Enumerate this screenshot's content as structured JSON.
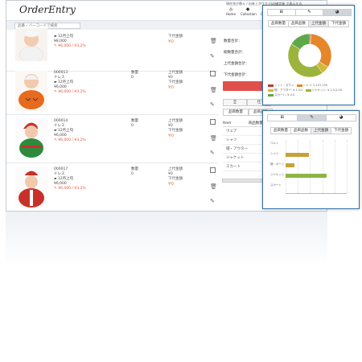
{
  "app": {
    "logo": "OrderEntry",
    "notice": "現在並び替え / 出来上がりで 日の確定後 で表示する",
    "nav": [
      {
        "icon": "home-icon",
        "glyph": "⌂",
        "label": "Home"
      },
      {
        "icon": "tag-icon",
        "glyph": "◆",
        "label": "Collection"
      },
      {
        "icon": "tag-icon",
        "glyph": "◆",
        "label": "Orde"
      }
    ],
    "search_placeholder": "品番・バーコードで検索"
  },
  "orders": [
    {
      "code": "",
      "name": "",
      "delivery": "12月上旬",
      "unit_price": "¥8,000",
      "price_line": "¥6,000 / ¥3,2%",
      "qty_label": "",
      "qty": "",
      "amt_label": "下代金額",
      "amt": "¥0",
      "image": "baby-white"
    },
    {
      "code": "000013",
      "name": "ドレス",
      "delivery": "12月上旬",
      "unit_price": "¥6,000",
      "price_line": "¥6,000 / ¥3.2%",
      "qty_label": "数量",
      "qty": "0",
      "amt_label": "上代金額",
      "amt": "¥0",
      "amt2_label": "下代金額",
      "amt2": "¥0",
      "image": "baby-pumpkin"
    },
    {
      "code": "000014",
      "name": "ドレス",
      "delivery": "12月上旬",
      "unit_price": "¥6,000",
      "price_line": "¥6,000 / ¥3.2%",
      "qty_label": "数量",
      "qty": "0",
      "amt_label": "上代金額",
      "amt": "¥0",
      "amt2_label": "下代金額",
      "amt2": "¥0",
      "image": "baby-green"
    },
    {
      "code": "000017",
      "name": "ドレス",
      "delivery": "12月上旬",
      "unit_price": "¥6,000",
      "price_line": "¥6,000 / ¥3.2%",
      "qty_label": "数量",
      "qty": "0",
      "amt_label": "上代金額",
      "amt": "¥0",
      "amt2_label": "下代金額",
      "amt2": "¥0",
      "image": "baby-santa"
    }
  ],
  "summary": {
    "labels": [
      "数量合計：",
      "総数量合計：",
      "上代金額合計：",
      "下代金額合計："
    ],
    "values": [
      "",
      "",
      "",
      ""
    ],
    "tabs": [
      "全",
      "仕"
    ],
    "bottom_tabs": [
      "品目数量",
      "品目品数"
    ],
    "sheet_header": [
      "Item",
      "商品数量"
    ],
    "sheet_rows": [
      "ウェア",
      "シャツ",
      "帽・アウター",
      "ジャケット",
      "スカート"
    ]
  },
  "panelA": {
    "tabs": [
      "⊞",
      "✎",
      "◕"
    ],
    "active_tab": 2,
    "subtabs": [
      "品目数量",
      "品目品数",
      "上代金額",
      "下代金額"
    ],
    "active_subtab": 2
  },
  "panelB": {
    "tabs": [
      "⊞",
      "✎",
      "◕"
    ],
    "active_tab": 1,
    "subtabs": [
      "品目数量",
      "品目品数",
      "上代金額",
      "下代金額"
    ],
    "active_subtab": 2
  },
  "colors": {
    "accent_red": "#e0504d",
    "price_red": "#e5533b",
    "amount_orange": "#e8782d",
    "panel_border": "#2f6ea6"
  },
  "chart_data": [
    {
      "type": "pie",
      "style": "donut",
      "categories": [
        "ニット・ガウン",
        "シャツ",
        "帽・アウター",
        "ジャケット",
        "スカート"
      ],
      "legend": [
        "ニット・ガウン",
        "シャツ: 2,157,100",
        "帽・アウター: ¥ 1,0,0",
        "ジャケット: ¥ 2,0,0,00",
        "スカート: ¥ 0,0"
      ],
      "values": [
        1,
        33,
        6,
        44,
        16
      ],
      "colors": [
        "#c0392b",
        "#e6862a",
        "#d4b83a",
        "#9cb43c",
        "#5fa84a"
      ],
      "legend_placement": "bottom"
    },
    {
      "type": "bar",
      "orientation": "horizontal",
      "categories": [
        "ベルト",
        "シャツ",
        "帽・ボート",
        "ジャケット",
        "スカート"
      ],
      "values": [
        0,
        38,
        14,
        67,
        0
      ],
      "colors": [
        "#c6a23a",
        "#c6a23a",
        "#c6a23a",
        "#8db545",
        "#8db545"
      ],
      "xlim": [
        0,
        100
      ],
      "grid": true
    }
  ]
}
